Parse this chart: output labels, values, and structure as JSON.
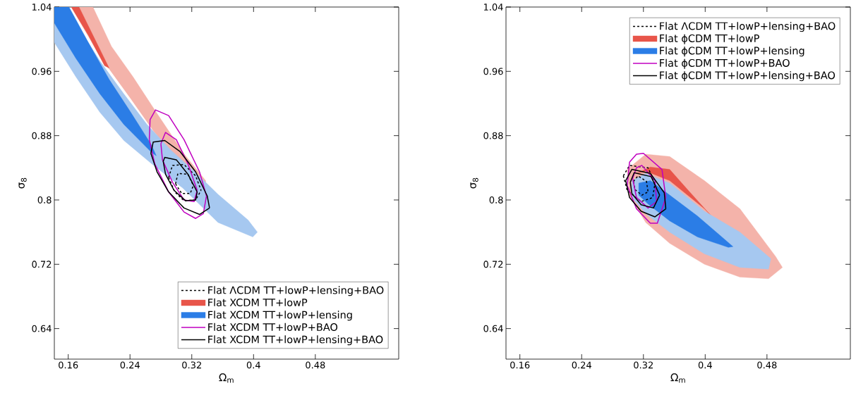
{
  "chart_data": [
    {
      "type": "line",
      "xlabel": "Ω$_{m}$",
      "ylabel": "σ$_{8}$",
      "xlim": [
        0.142,
        0.588
      ],
      "ylim": [
        0.602,
        1.04
      ],
      "xticks": [
        0.16,
        0.24,
        0.32,
        0.4,
        0.48
      ],
      "yticks": [
        0.64,
        0.72,
        0.8,
        0.88,
        0.96,
        1.04
      ],
      "legend": "bottom right",
      "series": [
        {
          "name": "Flat ΛCDM TT+lowP+lensing+BAO",
          "line_style": "dashed",
          "color": "#000000",
          "x": [
            0.29,
            0.295,
            0.31,
            0.325,
            0.332,
            null,
            0.29,
            0.298,
            0.31,
            0.325,
            0.332
          ],
          "values": [
            0.828,
            0.843,
            0.844,
            0.83,
            0.812,
            null,
            0.828,
            0.81,
            0.799,
            0.8,
            0.812
          ]
        },
        {
          "line_style": "dashed",
          "color": "#000000",
          "x": [
            0.299,
            0.302,
            0.315,
            0.322,
            null,
            0.299,
            0.307,
            0.318,
            0.322
          ],
          "values": [
            0.82,
            0.833,
            0.832,
            0.818,
            null,
            0.82,
            0.808,
            0.808,
            0.818
          ]
        },
        {
          "type": "area",
          "color": "#f4b3aa",
          "x": [
            0.164,
            0.201,
            0.241,
            0.271,
            0.302,
            0.326,
            0.338,
            0.338,
            0.311,
            0.274,
            0.244,
            0.216,
            0.192
          ],
          "values": [
            1.04,
            0.979,
            0.926,
            0.885,
            0.85,
            0.821,
            0.815,
            0.824,
            0.856,
            0.909,
            0.953,
            0.991,
            1.04
          ]
        },
        {
          "name": "Flat XCDM TT+lowP",
          "type": "area",
          "color": "#e8554a",
          "x": [
            0.164,
            0.186,
            0.207,
            0.213,
            0.195,
            0.174
          ],
          "values": [
            1.04,
            1.005,
            0.967,
            0.964,
            0.999,
            1.04
          ]
        },
        {
          "type": "area",
          "color": "#a6c8f0",
          "x": [
            0.142,
            0.17,
            0.201,
            0.232,
            0.268,
            0.308,
            0.354,
            0.399,
            0.405,
            0.393,
            0.354,
            0.323,
            0.293,
            0.262,
            0.232,
            0.201,
            0.174,
            0.158,
            0.142
          ],
          "values": [
            0.996,
            0.953,
            0.909,
            0.874,
            0.845,
            0.815,
            0.772,
            0.754,
            0.76,
            0.775,
            0.807,
            0.836,
            0.862,
            0.894,
            0.932,
            0.973,
            1.014,
            1.04,
            1.04
          ]
        },
        {
          "name": "Flat XCDM TT+lowP+lensing",
          "type": "area",
          "color": "#2b7de6",
          "x": [
            0.142,
            0.17,
            0.201,
            0.232,
            0.268,
            0.274,
            0.268,
            0.241,
            0.213,
            0.186,
            0.161,
            0.142
          ],
          "values": [
            1.02,
            0.976,
            0.932,
            0.894,
            0.859,
            0.855,
            0.868,
            0.909,
            0.95,
            0.996,
            1.04,
            1.04
          ]
        },
        {
          "name": "Flat XCDM TT+lowP+BAO",
          "color": "#c000c0",
          "x": [
            0.265,
            0.266,
            0.273,
            0.29,
            0.31,
            0.33,
            0.339,
            null,
            0.265,
            0.272,
            0.29,
            0.31,
            0.325,
            0.335,
            0.339
          ],
          "values": [
            0.875,
            0.9,
            0.912,
            0.905,
            0.875,
            0.835,
            0.805,
            null,
            0.875,
            0.845,
            0.81,
            0.785,
            0.777,
            0.783,
            0.805
          ]
        },
        {
          "color": "#c000c0",
          "x": [
            0.28,
            0.286,
            0.3,
            0.315,
            0.327,
            null,
            0.28,
            0.282,
            0.295,
            0.31,
            0.323,
            0.327
          ],
          "values": [
            0.87,
            0.884,
            0.875,
            0.845,
            0.812,
            null,
            0.87,
            0.85,
            0.822,
            0.8,
            0.798,
            0.812
          ]
        },
        {
          "name": "Flat XCDM TT+lowP+lensing+BAO",
          "color": "#000000",
          "x": [
            0.267,
            0.27,
            0.285,
            0.305,
            0.325,
            0.34,
            0.343,
            null,
            0.267,
            0.275,
            0.29,
            0.31,
            0.33,
            0.343
          ],
          "values": [
            0.858,
            0.872,
            0.874,
            0.86,
            0.835,
            0.805,
            0.79,
            null,
            0.858,
            0.835,
            0.81,
            0.79,
            0.782,
            0.79
          ]
        },
        {
          "color": "#000000",
          "x": [
            0.283,
            0.285,
            0.3,
            0.315,
            0.327,
            null,
            0.283,
            0.286,
            0.297,
            0.312,
            0.325,
            0.327
          ],
          "values": [
            0.848,
            0.853,
            0.85,
            0.832,
            0.81,
            null,
            0.848,
            0.832,
            0.812,
            0.799,
            0.8,
            0.81
          ]
        }
      ]
    },
    {
      "type": "line",
      "xlabel": "Ω$_{m}$",
      "ylabel": "σ$_{8}$",
      "xlim": [
        0.142,
        0.588
      ],
      "ylim": [
        0.602,
        1.04
      ],
      "xticks": [
        0.16,
        0.24,
        0.32,
        0.4,
        0.48
      ],
      "yticks": [
        0.64,
        0.72,
        0.8,
        0.88,
        0.96,
        1.04
      ],
      "legend": "top right",
      "series": [
        {
          "name": "Flat ΛCDM TT+lowP+lensing+BAO",
          "line_style": "dashed",
          "color": "#000000",
          "x": [
            0.294,
            0.302,
            0.326,
            0.335,
            null,
            0.294,
            0.299,
            0.317,
            0.332,
            0.335
          ],
          "values": [
            0.83,
            0.843,
            0.84,
            0.821,
            null,
            0.83,
            0.812,
            0.798,
            0.803,
            0.821
          ]
        },
        {
          "line_style": "dashed",
          "color": "#000000",
          "x": [
            0.307,
            0.313,
            0.324,
            0.326,
            null,
            0.307,
            0.309,
            0.318,
            0.326
          ],
          "values": [
            0.823,
            0.83,
            0.823,
            0.81,
            null,
            0.823,
            0.813,
            0.806,
            0.81
          ]
        },
        {
          "type": "area",
          "color": "#f4b3aa",
          "x": [
            0.299,
            0.323,
            0.354,
            0.399,
            0.445,
            0.491,
            0.5,
            0.482,
            0.445,
            0.399,
            0.354,
            0.323,
            0.302,
            0.299
          ],
          "values": [
            0.838,
            0.857,
            0.854,
            0.824,
            0.789,
            0.73,
            0.716,
            0.702,
            0.704,
            0.72,
            0.746,
            0.772,
            0.805,
            0.838
          ]
        },
        {
          "name": "Flat ϕCDM TT+lowP",
          "type": "area",
          "color": "#e8554a",
          "x": [
            0.311,
            0.329,
            0.354,
            0.378,
            0.408,
            0.399,
            0.354,
            0.323,
            0.311
          ],
          "values": [
            0.833,
            0.841,
            0.838,
            0.812,
            0.78,
            0.789,
            0.824,
            0.836,
            0.833
          ]
        },
        {
          "type": "area",
          "color": "#a6c8f0",
          "x": [
            0.305,
            0.323,
            0.354,
            0.399,
            0.445,
            0.485,
            0.482,
            0.445,
            0.399,
            0.354,
            0.323,
            0.305,
            0.305
          ],
          "values": [
            0.824,
            0.833,
            0.821,
            0.786,
            0.76,
            0.727,
            0.714,
            0.716,
            0.733,
            0.76,
            0.783,
            0.803,
            0.824
          ]
        },
        {
          "name": "Flat ϕCDM TT+lowP+lensing",
          "type": "area",
          "color": "#2b7de6",
          "x": [
            0.314,
            0.329,
            0.354,
            0.39,
            0.436,
            0.43,
            0.39,
            0.354,
            0.326,
            0.314,
            0.314
          ],
          "values": [
            0.821,
            0.824,
            0.806,
            0.78,
            0.742,
            0.741,
            0.754,
            0.774,
            0.795,
            0.806,
            0.821
          ]
        },
        {
          "name": "Flat ϕCDM TT+lowP+BAO",
          "color": "#c000c0",
          "x": [
            0.299,
            0.302,
            0.311,
            0.32,
            0.344,
            0.349,
            null,
            0.299,
            0.311,
            0.329,
            0.338,
            0.349
          ],
          "values": [
            0.818,
            0.847,
            0.857,
            0.858,
            0.838,
            0.803,
            null,
            0.818,
            0.789,
            0.771,
            0.771,
            0.803
          ]
        },
        {
          "color": "#c000c0",
          "x": [
            0.306,
            0.311,
            0.318,
            0.335,
            0.337,
            null,
            0.306,
            0.311,
            0.326,
            0.337
          ],
          "values": [
            0.827,
            0.84,
            0.843,
            0.824,
            0.798,
            null,
            0.827,
            0.803,
            0.79,
            0.798
          ]
        },
        {
          "name": "Flat ϕCDM TT+lowP+lensing+BAO",
          "color": "#000000",
          "x": [
            0.297,
            0.305,
            0.329,
            0.347,
            0.349,
            null,
            0.297,
            0.302,
            0.317,
            0.335,
            0.349
          ],
          "values": [
            0.824,
            0.838,
            0.833,
            0.809,
            0.789,
            null,
            0.824,
            0.803,
            0.786,
            0.779,
            0.789
          ]
        },
        {
          "color": "#000000",
          "x": [
            0.303,
            0.308,
            0.33,
            0.341,
            null,
            0.303,
            0.305,
            0.317,
            0.333,
            0.341
          ],
          "values": [
            0.822,
            0.834,
            0.829,
            0.806,
            null,
            0.822,
            0.808,
            0.794,
            0.79,
            0.806
          ]
        }
      ]
    }
  ]
}
